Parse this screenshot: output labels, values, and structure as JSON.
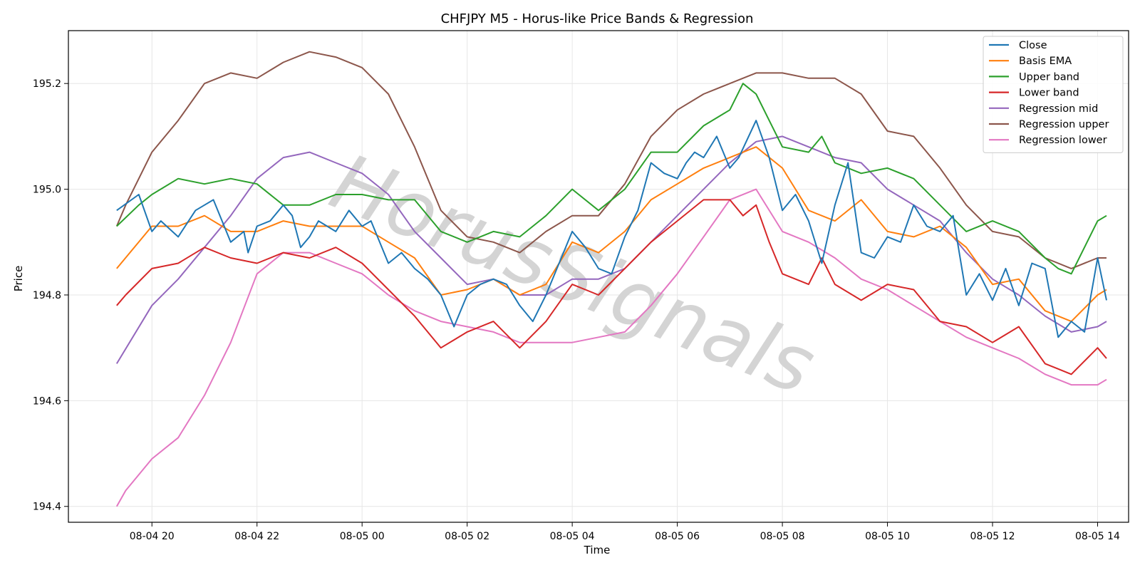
{
  "chart_data": {
    "type": "line",
    "title": "CHFJPY M5 - Horus-like Price Bands & Regression",
    "xlabel": "Time",
    "ylabel": "Price",
    "x_ticks": [
      "08-04 20",
      "08-04 22",
      "08-05 00",
      "08-05 02",
      "08-05 04",
      "08-05 06",
      "08-05 08",
      "08-05 10",
      "08-05 12",
      "08-05 14"
    ],
    "x_tick_hours": [
      0,
      2,
      4,
      6,
      8,
      10,
      12,
      14,
      16,
      18
    ],
    "y_ticks": [
      "194.4",
      "194.6",
      "194.8",
      "195.0",
      "195.2"
    ],
    "y_tick_values": [
      194.4,
      194.6,
      194.8,
      195.0,
      195.2
    ],
    "xlim_hours": [
      -1.59,
      18.59
    ],
    "ylim": [
      194.37,
      195.3
    ],
    "grid": true,
    "legend_position": "top-right",
    "watermark": "HorusSignals",
    "series": [
      {
        "name": "Close",
        "color": "#1f77b4",
        "x": [
          -0.67,
          -0.25,
          0.0,
          0.17,
          0.5,
          0.83,
          1.0,
          1.17,
          1.5,
          1.75,
          1.83,
          2.0,
          2.25,
          2.5,
          2.67,
          2.83,
          3.0,
          3.17,
          3.5,
          3.75,
          4.0,
          4.17,
          4.5,
          4.75,
          5.0,
          5.25,
          5.5,
          5.75,
          6.0,
          6.25,
          6.5,
          6.75,
          7.0,
          7.25,
          7.5,
          7.75,
          8.0,
          8.25,
          8.5,
          8.75,
          9.0,
          9.25,
          9.5,
          9.75,
          10.0,
          10.17,
          10.33,
          10.5,
          10.75,
          11.0,
          11.17,
          11.5,
          11.75,
          12.0,
          12.25,
          12.5,
          12.75,
          13.0,
          13.25,
          13.5,
          13.75,
          14.0,
          14.25,
          14.5,
          14.75,
          15.0,
          15.25,
          15.5,
          15.75,
          16.0,
          16.25,
          16.5,
          16.75,
          17.0,
          17.25,
          17.5,
          17.75,
          18.0,
          18.17
        ],
        "y": [
          194.96,
          194.99,
          194.92,
          194.94,
          194.91,
          194.96,
          194.97,
          194.98,
          194.9,
          194.92,
          194.88,
          194.93,
          194.94,
          194.97,
          194.95,
          194.89,
          194.91,
          194.94,
          194.92,
          194.96,
          194.93,
          194.94,
          194.86,
          194.88,
          194.85,
          194.83,
          194.8,
          194.74,
          194.8,
          194.82,
          194.83,
          194.82,
          194.78,
          194.75,
          194.8,
          194.86,
          194.92,
          194.89,
          194.85,
          194.84,
          194.91,
          194.96,
          195.05,
          195.03,
          195.02,
          195.05,
          195.07,
          195.06,
          195.1,
          195.04,
          195.06,
          195.13,
          195.06,
          194.96,
          194.99,
          194.94,
          194.86,
          194.97,
          195.05,
          194.88,
          194.87,
          194.91,
          194.9,
          194.97,
          194.93,
          194.92,
          194.95,
          194.8,
          194.84,
          194.79,
          194.85,
          194.78,
          194.86,
          194.85,
          194.72,
          194.75,
          194.73,
          194.87,
          194.79
        ]
      },
      {
        "name": "Basis EMA",
        "color": "#ff7f0e",
        "x": [
          -0.67,
          0.0,
          0.5,
          1.0,
          1.5,
          2.0,
          2.5,
          3.0,
          3.5,
          4.0,
          4.5,
          5.0,
          5.5,
          6.0,
          6.5,
          7.0,
          7.5,
          8.0,
          8.5,
          9.0,
          9.5,
          10.0,
          10.5,
          11.0,
          11.5,
          12.0,
          12.5,
          13.0,
          13.5,
          14.0,
          14.5,
          15.0,
          15.5,
          16.0,
          16.5,
          17.0,
          17.5,
          18.0,
          18.17
        ],
        "y": [
          194.85,
          194.93,
          194.93,
          194.95,
          194.92,
          194.92,
          194.94,
          194.93,
          194.93,
          194.93,
          194.9,
          194.87,
          194.8,
          194.81,
          194.83,
          194.8,
          194.82,
          194.9,
          194.88,
          194.92,
          194.98,
          195.01,
          195.04,
          195.06,
          195.08,
          195.04,
          194.96,
          194.94,
          194.98,
          194.92,
          194.91,
          194.93,
          194.89,
          194.82,
          194.83,
          194.77,
          194.75,
          194.8,
          194.81
        ]
      },
      {
        "name": "Upper band",
        "color": "#2ca02c",
        "x": [
          -0.67,
          -0.25,
          0.0,
          0.5,
          1.0,
          1.5,
          2.0,
          2.5,
          3.0,
          3.5,
          4.0,
          4.5,
          5.0,
          5.5,
          6.0,
          6.5,
          7.0,
          7.5,
          8.0,
          8.5,
          9.0,
          9.5,
          10.0,
          10.5,
          11.0,
          11.25,
          11.5,
          11.75,
          12.0,
          12.5,
          12.75,
          13.0,
          13.5,
          14.0,
          14.5,
          15.0,
          15.5,
          16.0,
          16.5,
          17.0,
          17.25,
          17.5,
          18.0,
          18.17
        ],
        "y": [
          194.93,
          194.97,
          194.99,
          195.02,
          195.01,
          195.02,
          195.01,
          194.97,
          194.97,
          194.99,
          194.99,
          194.98,
          194.98,
          194.92,
          194.9,
          194.92,
          194.91,
          194.95,
          195.0,
          194.96,
          195.0,
          195.07,
          195.07,
          195.12,
          195.15,
          195.2,
          195.18,
          195.13,
          195.08,
          195.07,
          195.1,
          195.05,
          195.03,
          195.04,
          195.02,
          194.97,
          194.92,
          194.94,
          194.92,
          194.87,
          194.85,
          194.84,
          194.94,
          194.95
        ]
      },
      {
        "name": "Lower band",
        "color": "#d62728",
        "x": [
          -0.67,
          -0.5,
          0.0,
          0.5,
          1.0,
          1.5,
          2.0,
          2.5,
          3.0,
          3.5,
          4.0,
          4.5,
          5.0,
          5.5,
          6.0,
          6.5,
          7.0,
          7.5,
          8.0,
          8.5,
          9.0,
          9.5,
          10.0,
          10.5,
          11.0,
          11.25,
          11.5,
          11.75,
          12.0,
          12.5,
          12.75,
          13.0,
          13.5,
          14.0,
          14.5,
          15.0,
          15.5,
          16.0,
          16.5,
          17.0,
          17.25,
          17.5,
          18.0,
          18.17
        ],
        "y": [
          194.78,
          194.8,
          194.85,
          194.86,
          194.89,
          194.87,
          194.86,
          194.88,
          194.87,
          194.89,
          194.86,
          194.81,
          194.76,
          194.7,
          194.73,
          194.75,
          194.7,
          194.75,
          194.82,
          194.8,
          194.85,
          194.9,
          194.94,
          194.98,
          194.98,
          194.95,
          194.97,
          194.9,
          194.84,
          194.82,
          194.87,
          194.82,
          194.79,
          194.82,
          194.81,
          194.75,
          194.74,
          194.71,
          194.74,
          194.67,
          194.66,
          194.65,
          194.7,
          194.68
        ]
      },
      {
        "name": "Regression mid",
        "color": "#9467bd",
        "x": [
          -0.67,
          0.0,
          0.5,
          1.0,
          1.5,
          2.0,
          2.5,
          3.0,
          3.5,
          4.0,
          4.5,
          5.0,
          5.5,
          6.0,
          6.5,
          7.0,
          7.5,
          8.0,
          8.5,
          9.0,
          9.5,
          10.0,
          10.5,
          11.0,
          11.5,
          12.0,
          12.5,
          13.0,
          13.5,
          14.0,
          14.5,
          15.0,
          15.5,
          16.0,
          16.5,
          17.0,
          17.5,
          18.0,
          18.17
        ],
        "y": [
          194.67,
          194.78,
          194.83,
          194.89,
          194.95,
          195.02,
          195.06,
          195.07,
          195.05,
          195.03,
          194.99,
          194.92,
          194.87,
          194.82,
          194.83,
          194.8,
          194.8,
          194.83,
          194.83,
          194.85,
          194.9,
          194.95,
          195.0,
          195.05,
          195.09,
          195.1,
          195.08,
          195.06,
          195.05,
          195.0,
          194.97,
          194.94,
          194.88,
          194.83,
          194.8,
          194.76,
          194.73,
          194.74,
          194.75
        ]
      },
      {
        "name": "Regression upper",
        "color": "#8c564b",
        "x": [
          -0.67,
          -0.5,
          0.0,
          0.5,
          1.0,
          1.5,
          2.0,
          2.5,
          3.0,
          3.5,
          4.0,
          4.5,
          5.0,
          5.5,
          6.0,
          6.5,
          7.0,
          7.5,
          8.0,
          8.5,
          9.0,
          9.5,
          10.0,
          10.5,
          11.0,
          11.5,
          12.0,
          12.5,
          13.0,
          13.5,
          14.0,
          14.5,
          15.0,
          15.5,
          16.0,
          16.5,
          17.0,
          17.5,
          18.0,
          18.17
        ],
        "y": [
          194.93,
          194.97,
          195.07,
          195.13,
          195.2,
          195.22,
          195.21,
          195.24,
          195.26,
          195.25,
          195.23,
          195.18,
          195.08,
          194.96,
          194.91,
          194.9,
          194.88,
          194.92,
          194.95,
          194.95,
          195.01,
          195.1,
          195.15,
          195.18,
          195.2,
          195.22,
          195.22,
          195.21,
          195.21,
          195.18,
          195.11,
          195.1,
          195.04,
          194.97,
          194.92,
          194.91,
          194.87,
          194.85,
          194.87,
          194.87
        ]
      },
      {
        "name": "Regression lower",
        "color": "#e377c2",
        "x": [
          -0.67,
          -0.5,
          0.0,
          0.5,
          1.0,
          1.5,
          2.0,
          2.5,
          3.0,
          3.5,
          4.0,
          4.5,
          5.0,
          5.5,
          6.0,
          6.5,
          7.0,
          7.5,
          8.0,
          8.5,
          9.0,
          9.5,
          10.0,
          10.5,
          11.0,
          11.5,
          12.0,
          12.5,
          13.0,
          13.5,
          14.0,
          14.5,
          15.0,
          15.5,
          16.0,
          16.5,
          17.0,
          17.5,
          18.0,
          18.17
        ],
        "y": [
          194.4,
          194.43,
          194.49,
          194.53,
          194.61,
          194.71,
          194.84,
          194.88,
          194.88,
          194.86,
          194.84,
          194.8,
          194.77,
          194.75,
          194.74,
          194.73,
          194.71,
          194.71,
          194.71,
          194.72,
          194.73,
          194.78,
          194.84,
          194.91,
          194.98,
          195.0,
          194.92,
          194.9,
          194.87,
          194.83,
          194.81,
          194.78,
          194.75,
          194.72,
          194.7,
          194.68,
          194.65,
          194.63,
          194.63,
          194.64
        ]
      }
    ]
  }
}
